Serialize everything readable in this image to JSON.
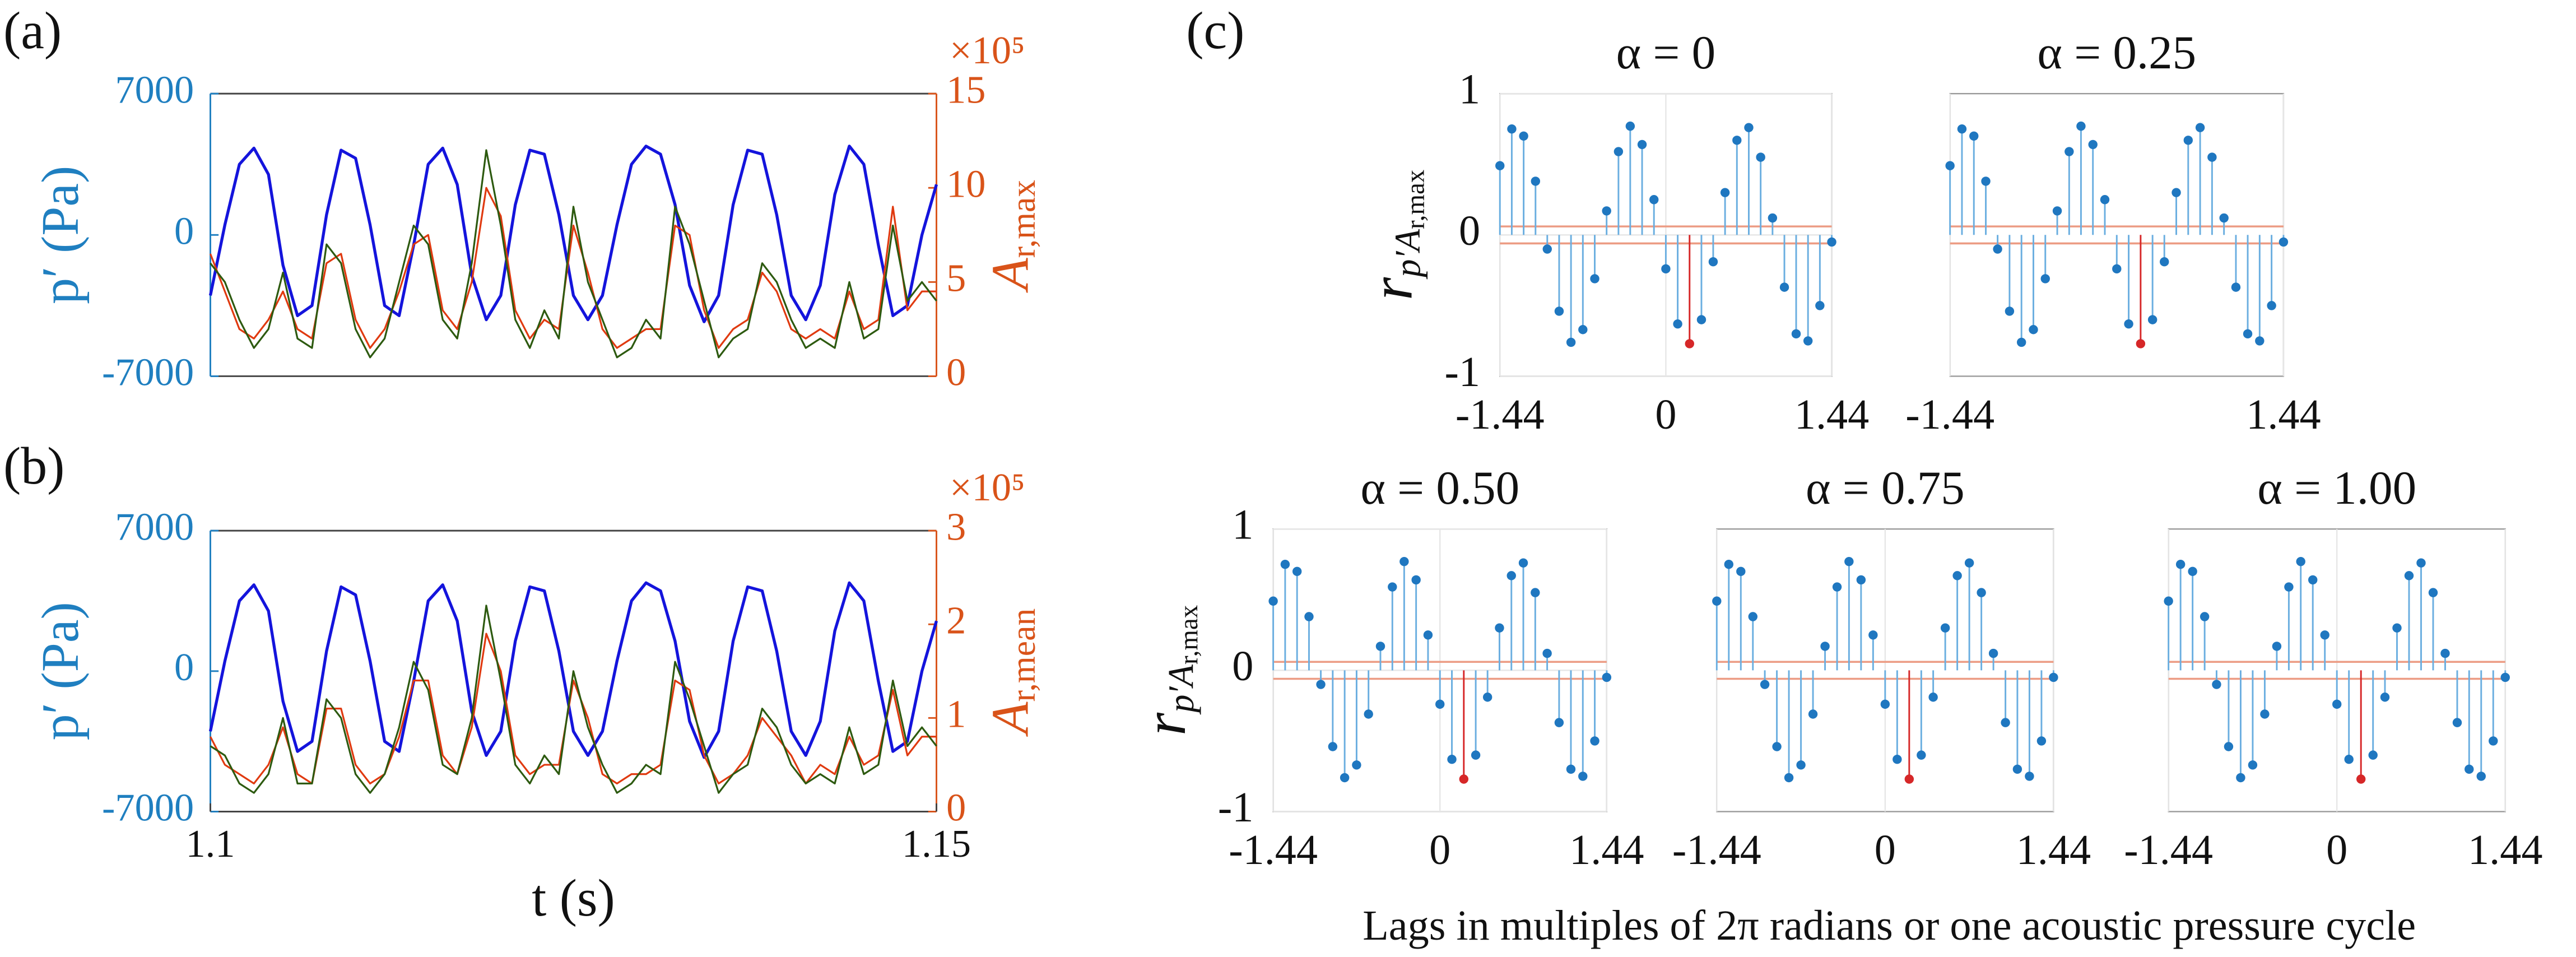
{
  "chart_data": [
    {
      "type": "line",
      "panel_label": "(a)",
      "y_label": "p′ (Pa)",
      "y_color": "#1f7fc0",
      "y2_label": {
        "main": "A",
        "sub": "r,max"
      },
      "y2_color": "#d95319",
      "y2_multiplier": "×10⁵",
      "x": [
        1.1,
        1.101,
        1.102,
        1.103,
        1.104,
        1.105,
        1.106,
        1.107,
        1.108,
        1.109,
        1.11,
        1.111,
        1.112,
        1.113,
        1.114,
        1.115,
        1.116,
        1.117,
        1.118,
        1.119,
        1.12,
        1.121,
        1.122,
        1.123,
        1.124,
        1.125,
        1.126,
        1.127,
        1.128,
        1.129,
        1.13,
        1.131,
        1.132,
        1.133,
        1.134,
        1.135,
        1.136,
        1.137,
        1.138,
        1.139,
        1.14,
        1.141,
        1.142,
        1.143,
        1.144,
        1.145,
        1.146,
        1.147,
        1.148,
        1.149,
        1.15
      ],
      "xlim": [
        1.1,
        1.15
      ],
      "ylim": [
        -7000,
        7000
      ],
      "yticks": [
        -7000,
        0,
        7000
      ],
      "y2lim": [
        0,
        1500000
      ],
      "y2ticks": [
        0,
        {
          "value": 500000,
          "label": "5"
        },
        {
          "value": 1000000,
          "label": "10"
        },
        {
          "value": 1500000,
          "label": "15"
        }
      ],
      "series": [
        {
          "color": "#1414dc",
          "values": [
            -3000,
            500,
            3500,
            4300,
            3000,
            -1500,
            -4000,
            -3500,
            1000,
            4200,
            3800,
            500,
            -3500,
            -4000,
            -500,
            3500,
            4300,
            2500,
            -2000,
            -4200,
            -3000,
            1500,
            4200,
            4000,
            1000,
            -3000,
            -4200,
            -3000,
            500,
            3500,
            4400,
            4000,
            1500,
            -2500,
            -4300,
            -3000,
            1500,
            4200,
            4000,
            1000,
            -3000,
            -4200,
            -2500,
            2000,
            4400,
            3500,
            -500,
            -4000,
            -3500,
            0,
            2500
          ]
        },
        {
          "color": "#e03a10",
          "axis": "y2",
          "values": [
            650000,
            450000,
            250000,
            200000,
            300000,
            450000,
            250000,
            200000,
            600000,
            650000,
            300000,
            150000,
            250000,
            450000,
            700000,
            750000,
            350000,
            250000,
            500000,
            1000000,
            850000,
            350000,
            200000,
            300000,
            250000,
            800000,
            550000,
            250000,
            150000,
            200000,
            250000,
            250000,
            800000,
            750000,
            350000,
            150000,
            250000,
            300000,
            550000,
            450000,
            250000,
            200000,
            250000,
            200000,
            450000,
            250000,
            300000,
            900000,
            350000,
            450000,
            450000
          ]
        },
        {
          "color": "#2d5a10",
          "axis": "y2",
          "values": [
            600000,
            500000,
            300000,
            150000,
            250000,
            550000,
            200000,
            150000,
            700000,
            600000,
            250000,
            100000,
            200000,
            500000,
            800000,
            700000,
            300000,
            200000,
            600000,
            1200000,
            800000,
            300000,
            150000,
            350000,
            200000,
            900000,
            500000,
            300000,
            100000,
            150000,
            300000,
            200000,
            900000,
            700000,
            400000,
            100000,
            200000,
            250000,
            600000,
            500000,
            300000,
            150000,
            200000,
            150000,
            500000,
            200000,
            250000,
            800000,
            400000,
            500000,
            400000
          ]
        }
      ]
    },
    {
      "type": "line",
      "panel_label": "(b)",
      "y_label": "p′ (Pa)",
      "y_color": "#1f7fc0",
      "y2_label": {
        "main": "A",
        "sub": "r,mean"
      },
      "y2_color": "#d95319",
      "y2_multiplier": "×10⁵",
      "x_label": "t (s)",
      "x": [
        1.1,
        1.101,
        1.102,
        1.103,
        1.104,
        1.105,
        1.106,
        1.107,
        1.108,
        1.109,
        1.11,
        1.111,
        1.112,
        1.113,
        1.114,
        1.115,
        1.116,
        1.117,
        1.118,
        1.119,
        1.12,
        1.121,
        1.122,
        1.123,
        1.124,
        1.125,
        1.126,
        1.127,
        1.128,
        1.129,
        1.13,
        1.131,
        1.132,
        1.133,
        1.134,
        1.135,
        1.136,
        1.137,
        1.138,
        1.139,
        1.14,
        1.141,
        1.142,
        1.143,
        1.144,
        1.145,
        1.146,
        1.147,
        1.148,
        1.149,
        1.15
      ],
      "xlim": [
        1.1,
        1.15
      ],
      "xticks": [
        1.1,
        1.15
      ],
      "ylim": [
        -7000,
        7000
      ],
      "yticks": [
        -7000,
        0,
        7000
      ],
      "y2lim": [
        0,
        300000
      ],
      "y2ticks": [
        0,
        {
          "value": 100000,
          "label": "1"
        },
        {
          "value": 200000,
          "label": "2"
        },
        {
          "value": 300000,
          "label": "3"
        }
      ],
      "series": [
        {
          "color": "#1414dc",
          "values": [
            -3000,
            500,
            3500,
            4300,
            3000,
            -1500,
            -4000,
            -3500,
            1000,
            4200,
            3800,
            500,
            -3500,
            -4000,
            -500,
            3500,
            4300,
            2500,
            -2000,
            -4200,
            -3000,
            1500,
            4200,
            4000,
            1000,
            -3000,
            -4200,
            -3000,
            500,
            3500,
            4400,
            4000,
            1500,
            -2500,
            -4300,
            -3000,
            1500,
            4200,
            4000,
            1000,
            -3000,
            -4200,
            -2500,
            2000,
            4400,
            3500,
            -500,
            -4000,
            -3500,
            0,
            2500
          ]
        },
        {
          "color": "#e03a10",
          "axis": "y2",
          "values": [
            80000,
            50000,
            40000,
            30000,
            50000,
            90000,
            40000,
            30000,
            110000,
            110000,
            50000,
            30000,
            40000,
            80000,
            140000,
            140000,
            60000,
            40000,
            90000,
            190000,
            150000,
            60000,
            40000,
            50000,
            50000,
            140000,
            100000,
            40000,
            30000,
            40000,
            40000,
            50000,
            140000,
            130000,
            60000,
            30000,
            40000,
            60000,
            100000,
            80000,
            60000,
            30000,
            50000,
            40000,
            80000,
            50000,
            60000,
            130000,
            60000,
            80000,
            80000
          ]
        },
        {
          "color": "#2d5a10",
          "axis": "y2",
          "values": [
            70000,
            60000,
            30000,
            20000,
            40000,
            100000,
            30000,
            30000,
            120000,
            100000,
            40000,
            20000,
            40000,
            90000,
            160000,
            130000,
            50000,
            40000,
            100000,
            220000,
            140000,
            50000,
            30000,
            60000,
            40000,
            150000,
            90000,
            50000,
            20000,
            30000,
            50000,
            40000,
            160000,
            120000,
            70000,
            20000,
            40000,
            50000,
            110000,
            90000,
            50000,
            30000,
            40000,
            30000,
            90000,
            40000,
            50000,
            140000,
            70000,
            90000,
            70000
          ]
        }
      ]
    },
    {
      "type": "stem",
      "panel_label": "(c)",
      "title": "α = 0",
      "y_label": {
        "main": "r",
        "sub": "p′A",
        "sub2": "r,max"
      },
      "x": [
        -1.44,
        -1.337,
        -1.234,
        -1.131,
        -1.029,
        -0.926,
        -0.823,
        -0.72,
        -0.617,
        -0.514,
        -0.411,
        -0.309,
        -0.206,
        -0.103,
        0,
        0.103,
        0.206,
        0.309,
        0.411,
        0.514,
        0.617,
        0.72,
        0.823,
        0.926,
        1.029,
        1.131,
        1.234,
        1.337,
        1.44
      ],
      "values": [
        0.49,
        0.75,
        0.7,
        0.38,
        -0.1,
        -0.54,
        -0.76,
        -0.67,
        -0.31,
        0.17,
        0.59,
        0.77,
        0.64,
        0.25,
        -0.24,
        -0.63,
        -0.77,
        -0.6,
        -0.19,
        0.3,
        0.67,
        0.76,
        0.55,
        0.12,
        -0.37,
        -0.7,
        -0.75,
        -0.5,
        -0.05
      ],
      "xlim": [
        -1.44,
        1.44
      ],
      "xticks": [
        -1.44,
        0,
        1.44
      ],
      "ylim": [
        -1,
        1
      ],
      "yticks": [
        -1,
        0,
        1
      ],
      "bounds": [
        -0.06,
        0.06
      ],
      "color": "#1f77c0",
      "stem_color": "#6aaee0",
      "bounds_color": "#ec9c84",
      "highlight_color": "#d62728",
      "grid": true
    },
    {
      "type": "stem",
      "title": "α = 0.25",
      "x": [
        -1.44,
        -1.337,
        -1.234,
        -1.131,
        -1.029,
        -0.926,
        -0.823,
        -0.72,
        -0.617,
        -0.514,
        -0.411,
        -0.309,
        -0.206,
        -0.103,
        0,
        0.103,
        0.206,
        0.309,
        0.411,
        0.514,
        0.617,
        0.72,
        0.823,
        0.926,
        1.029,
        1.131,
        1.234,
        1.337,
        1.44
      ],
      "values": [
        0.49,
        0.75,
        0.7,
        0.38,
        -0.1,
        -0.54,
        -0.76,
        -0.67,
        -0.31,
        0.17,
        0.59,
        0.77,
        0.64,
        0.25,
        -0.24,
        -0.63,
        -0.77,
        -0.6,
        -0.19,
        0.3,
        0.67,
        0.76,
        0.55,
        0.12,
        -0.37,
        -0.7,
        -0.75,
        -0.5,
        -0.05
      ],
      "xlim": [
        -1.44,
        1.44
      ],
      "xticks": [
        -1.44,
        1.44
      ],
      "ylim": [
        -1,
        1
      ],
      "bounds": [
        -0.06,
        0.06
      ],
      "color": "#1f77c0",
      "stem_color": "#6aaee0",
      "bounds_color": "#ec9c84",
      "highlight_color": "#d62728",
      "grid": true
    },
    {
      "type": "stem",
      "title": "α = 0.50",
      "y_label": {
        "main": "r",
        "sub": "p′A",
        "sub2": "r,max"
      },
      "x_label": "Lags in multiples of 2π radians or one acoustic pressure cycle",
      "x": [
        -1.44,
        -1.337,
        -1.234,
        -1.131,
        -1.029,
        -0.926,
        -0.823,
        -0.72,
        -0.617,
        -0.514,
        -0.411,
        -0.309,
        -0.206,
        -0.103,
        0,
        0.103,
        0.206,
        0.309,
        0.411,
        0.514,
        0.617,
        0.72,
        0.823,
        0.926,
        1.029,
        1.131,
        1.234,
        1.337,
        1.44
      ],
      "values": [
        0.49,
        0.75,
        0.7,
        0.38,
        -0.1,
        -0.54,
        -0.76,
        -0.67,
        -0.31,
        0.17,
        0.59,
        0.77,
        0.64,
        0.25,
        -0.24,
        -0.63,
        -0.77,
        -0.6,
        -0.19,
        0.3,
        0.67,
        0.76,
        0.55,
        0.12,
        -0.37,
        -0.7,
        -0.75,
        -0.5,
        -0.05
      ],
      "xlim": [
        -1.44,
        1.44
      ],
      "xticks": [
        -1.44,
        0,
        1.44
      ],
      "ylim": [
        -1,
        1
      ],
      "yticks": [
        -1,
        0,
        1
      ],
      "bounds": [
        -0.06,
        0.06
      ],
      "color": "#1f77c0",
      "stem_color": "#6aaee0",
      "bounds_color": "#ec9c84",
      "highlight_color": "#d62728",
      "grid": true
    },
    {
      "type": "stem",
      "title": "α = 0.75",
      "x": [
        -1.44,
        -1.337,
        -1.234,
        -1.131,
        -1.029,
        -0.926,
        -0.823,
        -0.72,
        -0.617,
        -0.514,
        -0.411,
        -0.309,
        -0.206,
        -0.103,
        0,
        0.103,
        0.206,
        0.309,
        0.411,
        0.514,
        0.617,
        0.72,
        0.823,
        0.926,
        1.029,
        1.131,
        1.234,
        1.337,
        1.44
      ],
      "values": [
        0.49,
        0.75,
        0.7,
        0.38,
        -0.1,
        -0.54,
        -0.76,
        -0.67,
        -0.31,
        0.17,
        0.59,
        0.77,
        0.64,
        0.25,
        -0.24,
        -0.63,
        -0.77,
        -0.6,
        -0.19,
        0.3,
        0.67,
        0.76,
        0.55,
        0.12,
        -0.37,
        -0.7,
        -0.75,
        -0.5,
        -0.05
      ],
      "xlim": [
        -1.44,
        1.44
      ],
      "xticks": [
        -1.44,
        0,
        1.44
      ],
      "ylim": [
        -1,
        1
      ],
      "bounds": [
        -0.06,
        0.06
      ],
      "color": "#1f77c0",
      "stem_color": "#6aaee0",
      "bounds_color": "#ec9c84",
      "highlight_color": "#d62728",
      "grid": true
    },
    {
      "type": "stem",
      "title": "α = 1.00",
      "x": [
        -1.44,
        -1.337,
        -1.234,
        -1.131,
        -1.029,
        -0.926,
        -0.823,
        -0.72,
        -0.617,
        -0.514,
        -0.411,
        -0.309,
        -0.206,
        -0.103,
        0,
        0.103,
        0.206,
        0.309,
        0.411,
        0.514,
        0.617,
        0.72,
        0.823,
        0.926,
        1.029,
        1.131,
        1.234,
        1.337,
        1.44
      ],
      "values": [
        0.49,
        0.75,
        0.7,
        0.38,
        -0.1,
        -0.54,
        -0.76,
        -0.67,
        -0.31,
        0.17,
        0.59,
        0.77,
        0.64,
        0.25,
        -0.24,
        -0.63,
        -0.77,
        -0.6,
        -0.19,
        0.3,
        0.67,
        0.76,
        0.55,
        0.12,
        -0.37,
        -0.7,
        -0.75,
        -0.5,
        -0.05
      ],
      "xlim": [
        -1.44,
        1.44
      ],
      "xticks": [
        -1.44,
        0,
        1.44
      ],
      "ylim": [
        -1,
        1
      ],
      "bounds": [
        -0.06,
        0.06
      ],
      "color": "#1f77c0",
      "stem_color": "#6aaee0",
      "bounds_color": "#ec9c84",
      "highlight_color": "#d62728",
      "grid": true
    }
  ]
}
